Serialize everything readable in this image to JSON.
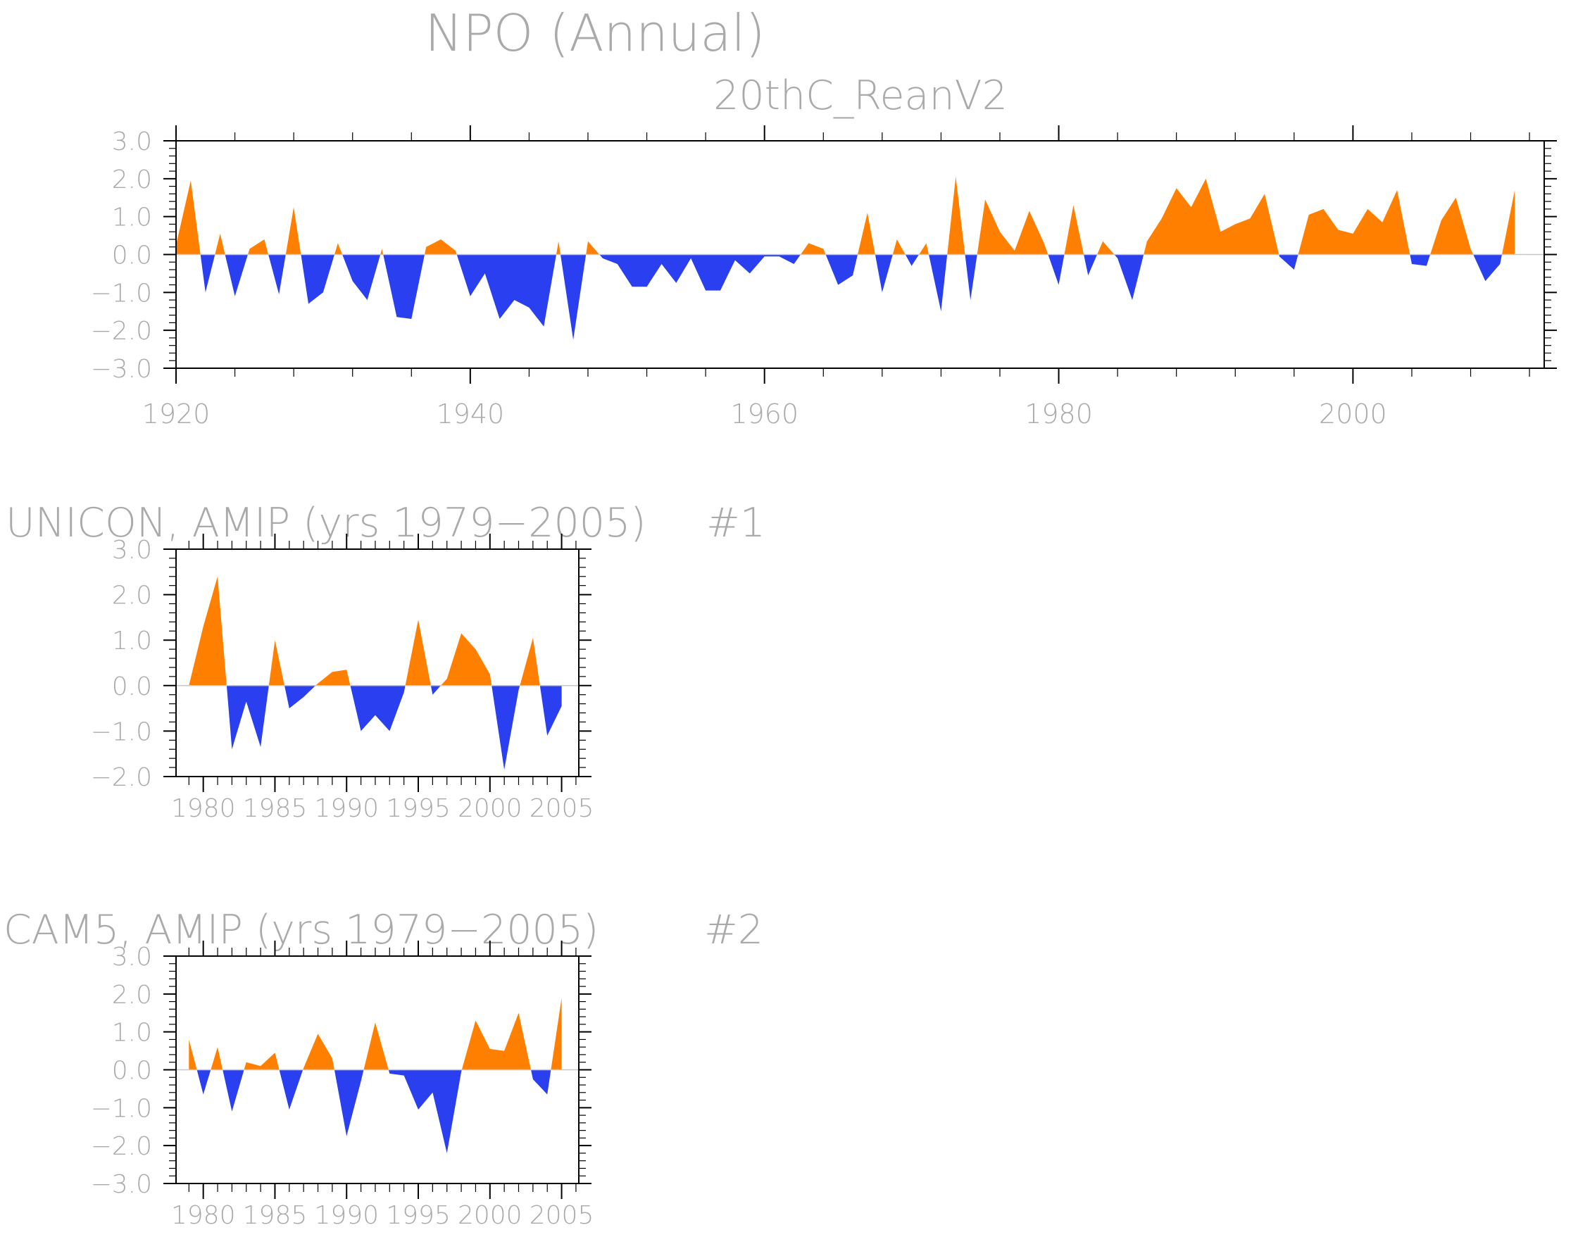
{
  "figure": {
    "title": "NPO (Annual)",
    "colors": {
      "positive": "#ff8000",
      "negative": "#2a40f0",
      "axis": "#000000",
      "text": "#aaaaaa"
    }
  },
  "chart_data": [
    {
      "type": "area",
      "subtitle": "20thC_ReanV2",
      "title_left": "",
      "title_right": "",
      "ylim": [
        -3,
        3
      ],
      "yticks": [
        -3,
        -2,
        -1,
        0,
        1,
        2,
        3
      ],
      "ytick_labels": [
        "−3.0",
        "−2.0",
        "−1.0",
        "0.0",
        "1.0",
        "2.0",
        "3.0"
      ],
      "xlim": [
        1920,
        2013
      ],
      "xticks": [
        1920,
        1940,
        1960,
        1980,
        2000
      ],
      "xtick_labels": [
        "1920",
        "1940",
        "1960",
        "1980",
        "2000"
      ],
      "x": [
        1920,
        1921,
        1922,
        1923,
        1924,
        1925,
        1926,
        1927,
        1928,
        1929,
        1930,
        1931,
        1932,
        1933,
        1934,
        1935,
        1936,
        1937,
        1938,
        1939,
        1940,
        1941,
        1942,
        1943,
        1944,
        1945,
        1946,
        1947,
        1948,
        1949,
        1950,
        1951,
        1952,
        1953,
        1954,
        1955,
        1956,
        1957,
        1958,
        1959,
        1960,
        1961,
        1962,
        1963,
        1964,
        1965,
        1966,
        1967,
        1968,
        1969,
        1970,
        1971,
        1972,
        1973,
        1974,
        1975,
        1976,
        1977,
        1978,
        1979,
        1980,
        1981,
        1982,
        1983,
        1984,
        1985,
        1986,
        1987,
        1988,
        1989,
        1990,
        1991,
        1992,
        1993,
        1994,
        1995,
        1996,
        1997,
        1998,
        1999,
        2000,
        2001,
        2002,
        2003,
        2004,
        2005,
        2006,
        2007,
        2008,
        2009,
        2010,
        2011
      ],
      "values": [
        0.25,
        1.95,
        -1.0,
        0.55,
        -1.1,
        0.15,
        0.4,
        -1.05,
        1.25,
        -1.3,
        -1.0,
        0.3,
        -0.7,
        -1.2,
        0.15,
        -1.65,
        -1.7,
        0.2,
        0.4,
        0.1,
        -1.1,
        -0.5,
        -1.7,
        -1.2,
        -1.4,
        -1.9,
        0.35,
        -2.25,
        0.35,
        -0.1,
        -0.25,
        -0.85,
        -0.85,
        -0.25,
        -0.75,
        -0.1,
        -0.95,
        -0.95,
        -0.15,
        -0.5,
        -0.05,
        -0.05,
        -0.25,
        0.3,
        0.15,
        -0.8,
        -0.55,
        1.1,
        -1.0,
        0.4,
        -0.3,
        0.3,
        -1.5,
        2.05,
        -1.2,
        1.45,
        0.6,
        0.1,
        1.15,
        0.3,
        -0.8,
        1.3,
        -0.55,
        0.35,
        -0.1,
        -1.2,
        0.35,
        0.95,
        1.75,
        1.25,
        2.0,
        0.6,
        0.8,
        0.95,
        1.6,
        -0.05,
        -0.4,
        1.05,
        1.2,
        0.65,
        0.55,
        1.2,
        0.85,
        1.7,
        -0.25,
        -0.3,
        0.9,
        1.5,
        0.15,
        -0.7,
        -0.25,
        1.7
      ]
    },
    {
      "type": "area",
      "subtitle": "",
      "title_left": "UNICON, AMIP (yrs 1979−2005)",
      "title_right": "#1",
      "ylim": [
        -2,
        3
      ],
      "yticks": [
        -2,
        -1,
        0,
        1,
        2,
        3
      ],
      "ytick_labels": [
        "−2.0",
        "−1.0",
        "0.0",
        "1.0",
        "2.0",
        "3.0"
      ],
      "xlim": [
        1978.1,
        2006.2
      ],
      "xticks": [
        1980,
        1985,
        1990,
        1995,
        2000,
        2005
      ],
      "xtick_labels": [
        "1980",
        "1985",
        "1990",
        "1995",
        "2000",
        "2005"
      ],
      "x": [
        1979,
        1980,
        1981,
        1982,
        1983,
        1984,
        1985,
        1986,
        1987,
        1988,
        1989,
        1990,
        1991,
        1992,
        1993,
        1994,
        1995,
        1996,
        1997,
        1998,
        1999,
        2000,
        2001,
        2002,
        2003,
        2004,
        2005
      ],
      "values": [
        0.0,
        1.3,
        2.4,
        -1.4,
        -0.35,
        -1.35,
        1.0,
        -0.5,
        -0.25,
        0.05,
        0.3,
        0.35,
        -1.0,
        -0.65,
        -1.0,
        -0.15,
        1.45,
        -0.2,
        0.15,
        1.15,
        0.8,
        0.25,
        -1.85,
        -0.1,
        1.05,
        -1.1,
        -0.45
      ]
    },
    {
      "type": "area",
      "subtitle": "",
      "title_left": "CAM5, AMIP (yrs 1979−2005)",
      "title_right": "#2",
      "ylim": [
        -3,
        3
      ],
      "yticks": [
        -3,
        -2,
        -1,
        0,
        1,
        2,
        3
      ],
      "ytick_labels": [
        "−3.0",
        "−2.0",
        "−1.0",
        "0.0",
        "1.0",
        "2.0",
        "3.0"
      ],
      "xlim": [
        1978.1,
        2006.2
      ],
      "xticks": [
        1980,
        1985,
        1990,
        1995,
        2000,
        2005
      ],
      "xtick_labels": [
        "1980",
        "1985",
        "1990",
        "1995",
        "2000",
        "2005"
      ],
      "x": [
        1979,
        1980,
        1981,
        1982,
        1983,
        1984,
        1985,
        1986,
        1987,
        1988,
        1989,
        1990,
        1991,
        1992,
        1993,
        1994,
        1995,
        1996,
        1997,
        1998,
        1999,
        2000,
        2001,
        2002,
        2003,
        2004,
        2005
      ],
      "values": [
        0.8,
        -0.65,
        0.6,
        -1.1,
        0.2,
        0.1,
        0.45,
        -1.05,
        0.05,
        0.95,
        0.3,
        -1.75,
        -0.3,
        1.25,
        -0.1,
        -0.15,
        -1.05,
        -0.6,
        -2.2,
        -0.05,
        1.3,
        0.55,
        0.5,
        1.5,
        -0.25,
        -0.65,
        1.9
      ]
    }
  ]
}
